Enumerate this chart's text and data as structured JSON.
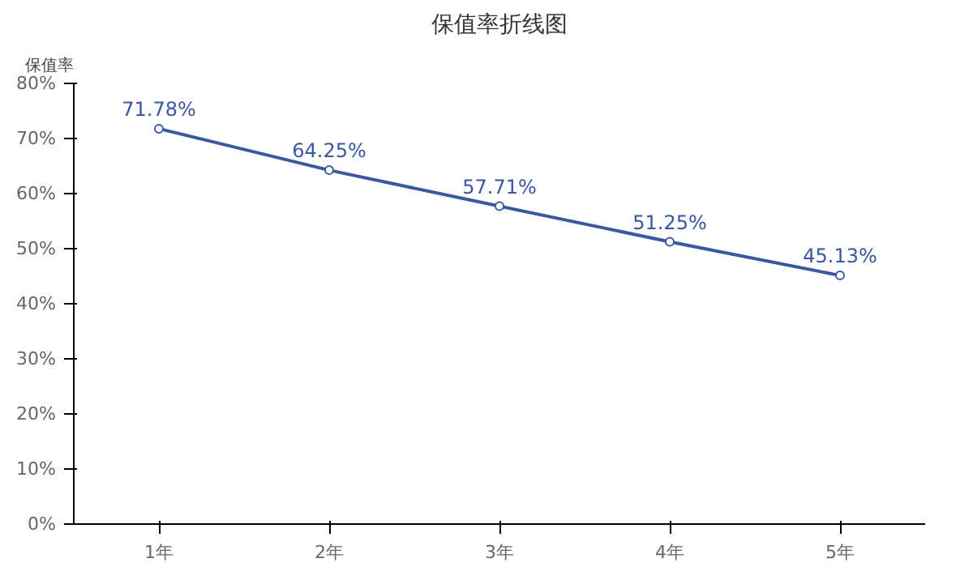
{
  "chart_data": {
    "type": "line",
    "title": "保值率折线图",
    "ylabel": "保值率",
    "categories": [
      "1年",
      "2年",
      "3年",
      "4年",
      "5年"
    ],
    "series": [
      {
        "color": "#3a57a0",
        "values": [
          71.78,
          64.25,
          57.71,
          51.25,
          45.13
        ],
        "value_labels": [
          "71.78%",
          "64.25%",
          "57.71%",
          "51.25%",
          "45.13%"
        ]
      }
    ],
    "ylim": [
      0,
      80
    ],
    "yticks": [
      {
        "value": 0,
        "label": "0%"
      },
      {
        "value": 10,
        "label": "10%"
      },
      {
        "value": 20,
        "label": "20%"
      },
      {
        "value": 30,
        "label": "30%"
      },
      {
        "value": 40,
        "label": "40%"
      },
      {
        "value": 50,
        "label": "50%"
      },
      {
        "value": 60,
        "label": "60%"
      },
      {
        "value": 70,
        "label": "70%"
      },
      {
        "value": 80,
        "label": "80%"
      }
    ],
    "grid": false,
    "marker": "circle",
    "line_style": "solid"
  }
}
